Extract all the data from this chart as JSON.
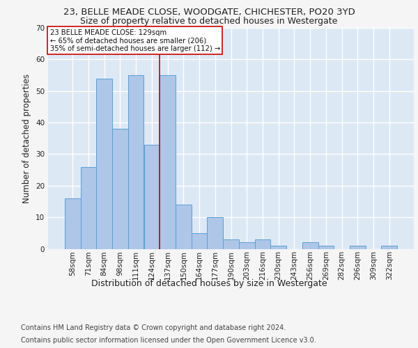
{
  "title": "23, BELLE MEADE CLOSE, WOODGATE, CHICHESTER, PO20 3YD",
  "subtitle": "Size of property relative to detached houses in Westergate",
  "xlabel": "Distribution of detached houses by size in Westergate",
  "ylabel": "Number of detached properties",
  "categories": [
    "58sqm",
    "71sqm",
    "84sqm",
    "98sqm",
    "111sqm",
    "124sqm",
    "137sqm",
    "150sqm",
    "164sqm",
    "177sqm",
    "190sqm",
    "203sqm",
    "216sqm",
    "230sqm",
    "243sqm",
    "256sqm",
    "269sqm",
    "282sqm",
    "296sqm",
    "309sqm",
    "322sqm"
  ],
  "values": [
    16,
    26,
    54,
    38,
    55,
    33,
    55,
    14,
    5,
    10,
    3,
    2,
    3,
    1,
    0,
    2,
    1,
    0,
    1,
    0,
    1
  ],
  "bar_color": "#aec6e8",
  "bar_edge_color": "#5a9fd4",
  "background_color": "#dde8f5",
  "grid_color": "#ffffff",
  "vline_x": 5.5,
  "vline_color": "#cc0000",
  "annotation_text": "23 BELLE MEADE CLOSE: 129sqm\n← 65% of detached houses are smaller (206)\n35% of semi-detached houses are larger (112) →",
  "annotation_box_color": "#ffffff",
  "annotation_box_edge_color": "#cc0000",
  "footer_line1": "Contains HM Land Registry data © Crown copyright and database right 2024.",
  "footer_line2": "Contains public sector information licensed under the Open Government Licence v3.0.",
  "ylim": [
    0,
    70
  ],
  "title_fontsize": 9.5,
  "subtitle_fontsize": 9,
  "ylabel_fontsize": 8.5,
  "xlabel_fontsize": 9,
  "tick_fontsize": 7.5,
  "footer_fontsize": 7,
  "fig_bg": "#f5f5f5"
}
